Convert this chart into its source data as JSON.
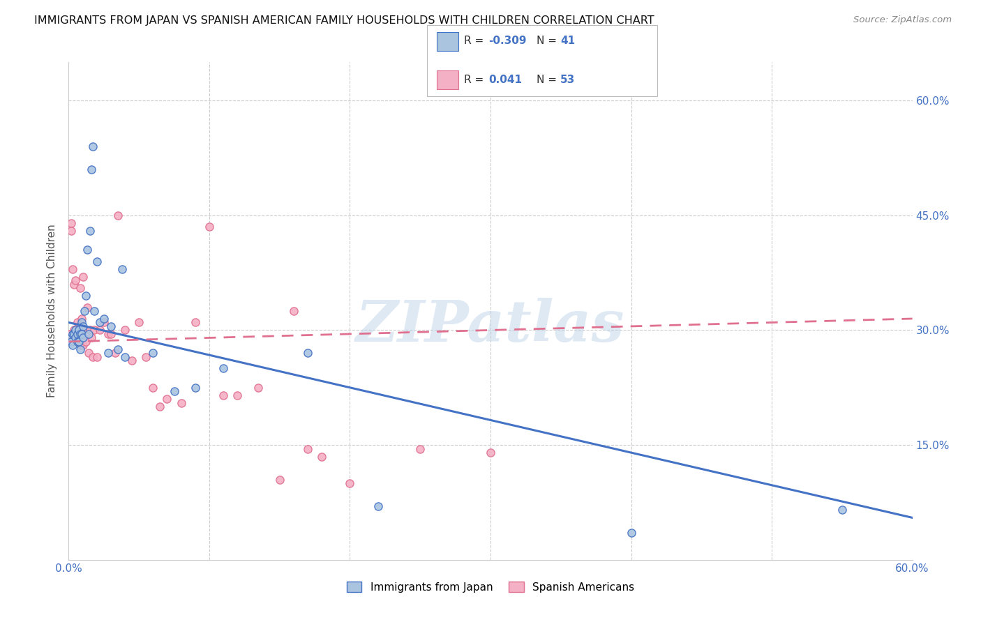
{
  "title": "IMMIGRANTS FROM JAPAN VS SPANISH AMERICAN FAMILY HOUSEHOLDS WITH CHILDREN CORRELATION CHART",
  "source": "Source: ZipAtlas.com",
  "ylabel": "Family Households with Children",
  "xlim": [
    0.0,
    0.6
  ],
  "ylim": [
    0.0,
    0.65
  ],
  "blue_color": "#aac4e0",
  "pink_color": "#f4b0c4",
  "line_blue": "#4472c4",
  "line_pink": "#e07090",
  "watermark": "ZIPatlas",
  "blue_scatter_x": [
    0.002,
    0.002,
    0.003,
    0.003,
    0.004,
    0.005,
    0.005,
    0.006,
    0.006,
    0.007,
    0.007,
    0.008,
    0.008,
    0.009,
    0.009,
    0.01,
    0.01,
    0.011,
    0.012,
    0.013,
    0.014,
    0.015,
    0.016,
    0.017,
    0.018,
    0.02,
    0.022,
    0.025,
    0.028,
    0.03,
    0.035,
    0.038,
    0.04,
    0.06,
    0.075,
    0.09,
    0.11,
    0.17,
    0.22,
    0.4,
    0.55
  ],
  "blue_scatter_y": [
    0.29,
    0.285,
    0.295,
    0.28,
    0.295,
    0.3,
    0.29,
    0.295,
    0.285,
    0.3,
    0.285,
    0.295,
    0.275,
    0.31,
    0.295,
    0.305,
    0.29,
    0.325,
    0.345,
    0.405,
    0.295,
    0.43,
    0.51,
    0.54,
    0.325,
    0.39,
    0.31,
    0.315,
    0.27,
    0.305,
    0.275,
    0.38,
    0.265,
    0.27,
    0.22,
    0.225,
    0.25,
    0.27,
    0.07,
    0.035,
    0.065
  ],
  "pink_scatter_x": [
    0.001,
    0.002,
    0.002,
    0.003,
    0.004,
    0.004,
    0.005,
    0.005,
    0.006,
    0.006,
    0.007,
    0.007,
    0.008,
    0.008,
    0.009,
    0.009,
    0.01,
    0.01,
    0.011,
    0.012,
    0.013,
    0.014,
    0.015,
    0.016,
    0.017,
    0.018,
    0.02,
    0.022,
    0.025,
    0.028,
    0.03,
    0.033,
    0.035,
    0.04,
    0.045,
    0.05,
    0.055,
    0.06,
    0.065,
    0.07,
    0.08,
    0.09,
    0.1,
    0.11,
    0.12,
    0.135,
    0.15,
    0.16,
    0.17,
    0.18,
    0.2,
    0.25,
    0.3
  ],
  "pink_scatter_y": [
    0.295,
    0.44,
    0.43,
    0.38,
    0.36,
    0.3,
    0.365,
    0.295,
    0.31,
    0.285,
    0.305,
    0.29,
    0.355,
    0.29,
    0.315,
    0.28,
    0.37,
    0.28,
    0.3,
    0.285,
    0.33,
    0.27,
    0.3,
    0.29,
    0.265,
    0.3,
    0.265,
    0.3,
    0.31,
    0.295,
    0.295,
    0.27,
    0.45,
    0.3,
    0.26,
    0.31,
    0.265,
    0.225,
    0.2,
    0.21,
    0.205,
    0.31,
    0.435,
    0.215,
    0.215,
    0.225,
    0.105,
    0.325,
    0.145,
    0.135,
    0.1,
    0.145,
    0.14
  ],
  "blue_line_x": [
    0.0,
    0.6
  ],
  "blue_line_y": [
    0.31,
    0.055
  ],
  "pink_line_x": [
    0.0,
    0.6
  ],
  "pink_line_y": [
    0.285,
    0.315
  ],
  "background_color": "#ffffff",
  "title_color": "#222222",
  "axis_color": "#4472c4",
  "marker_size": 65
}
